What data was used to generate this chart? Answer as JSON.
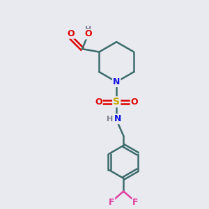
{
  "background_color": "#e8eaf0",
  "atom_colors": {
    "C": "#3d6b6b",
    "O": "#e00000",
    "N": "#1010e0",
    "S": "#c8a800",
    "F": "#e040a0",
    "H": "#808090"
  },
  "bond_color": "#3d6b6b",
  "bond_width": 1.8,
  "figsize": [
    3.0,
    3.0
  ],
  "dpi": 100
}
